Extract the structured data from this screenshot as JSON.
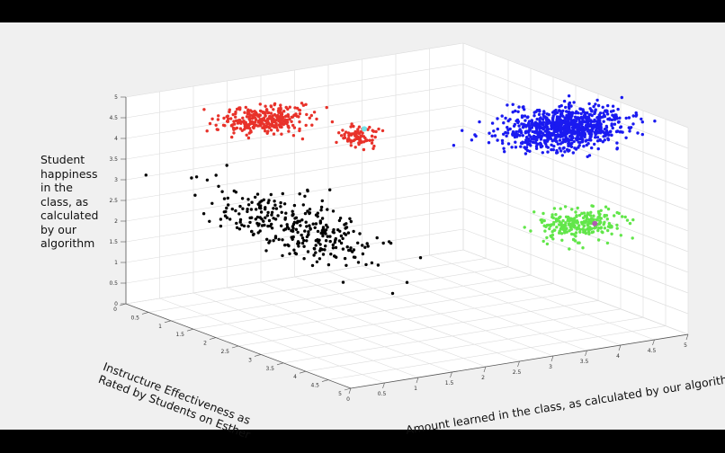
{
  "chart_data": {
    "type": "scatter",
    "dimensions": "3d",
    "zlabel": "Student happiness in the class, as calculated by our algorithm",
    "ylabel": "Instructure Effectiveness as Rated by Students on Esther",
    "xlabel": "Amount learned in the class, as calculated by our algorithm",
    "xlim": [
      0,
      5
    ],
    "ylim": [
      0,
      5
    ],
    "zlim": [
      0,
      5
    ],
    "ticks": [
      "0",
      "0.5",
      "1",
      "1.5",
      "2",
      "2.5",
      "3",
      "3.5",
      "4",
      "4.5",
      "5"
    ],
    "grid": true,
    "clusters": [
      {
        "color": "#e8322a",
        "count": 300,
        "center": [
          1.7,
          0.5,
          4.2
        ],
        "spread": [
          0.28,
          0.2,
          0.14
        ]
      },
      {
        "color": "#e8322a",
        "count": 80,
        "center": [
          3.1,
          0.5,
          3.45
        ],
        "spread": [
          0.15,
          0.12,
          0.1
        ]
      },
      {
        "color": "#1a1af0",
        "count": 900,
        "center": [
          4.5,
          3.0,
          4.3
        ],
        "spread": [
          0.4,
          0.28,
          0.22
        ]
      },
      {
        "color": "#62e64a",
        "count": 250,
        "center": [
          4.5,
          3.3,
          2.1
        ],
        "spread": [
          0.28,
          0.2,
          0.16
        ]
      },
      {
        "color": "#000000",
        "count": 300,
        "center": [
          1.5,
          1.5,
          2.1
        ],
        "spread": [
          0.25,
          0.85,
          0.3
        ]
      }
    ],
    "highlight_points": [
      {
        "color": "#6fe3e8",
        "point": [
          3.2,
          0.5,
          3.6
        ]
      },
      {
        "color": "#b05cb0",
        "point": [
          4.75,
          3.3,
          2.05
        ]
      }
    ]
  }
}
